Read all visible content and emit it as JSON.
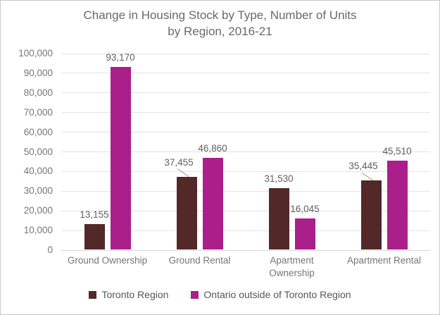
{
  "window": {
    "background": "#ffffff",
    "border_color": "#c9c9c9"
  },
  "title": {
    "text": "Change in Housing Stock by Type, Number of Units by Region, 2016-21",
    "lines": [
      "Change in Housing Stock by Type, Number of Units",
      "by Region, 2016-21"
    ],
    "color": "#696969"
  },
  "chart_data": {
    "type": "bar",
    "title": "Change in Housing Stock by Type, Number of Units by Region, 2016-21",
    "categories": [
      "Ground Ownership",
      "Ground Rental",
      "Apartment Ownership",
      "Apartment Rental"
    ],
    "series": [
      {
        "name": "Toronto Region",
        "color": "#522829",
        "values": [
          13155,
          37455,
          31530,
          35445
        ],
        "labels": [
          "13,155",
          "37,455",
          "31,530",
          "35,445"
        ],
        "callouts": [
          false,
          true,
          false,
          true
        ]
      },
      {
        "name": "Ontario outside of Toronto Region",
        "color": "#aa1f8a",
        "values": [
          93170,
          46860,
          16045,
          45510
        ],
        "labels": [
          "93,170",
          "46,860",
          "16,045",
          "45,510"
        ],
        "callouts": [
          false,
          false,
          false,
          false
        ]
      }
    ],
    "xlabel": "",
    "ylabel": "",
    "ylim": [
      0,
      100000
    ],
    "ytick_step": 10000,
    "ytick_labels": [
      "0",
      "10,000",
      "20,000",
      "30,000",
      "40,000",
      "50,000",
      "60,000",
      "70,000",
      "80,000",
      "90,000",
      "100,000"
    ],
    "grid": true,
    "gridline_color": "#e3e3e3",
    "legend_position": "bottom"
  },
  "legend": {
    "items": [
      {
        "label": "Toronto Region",
        "color": "#522829"
      },
      {
        "label": "Ontario outside of Toronto Region",
        "color": "#aa1f8a"
      }
    ]
  }
}
